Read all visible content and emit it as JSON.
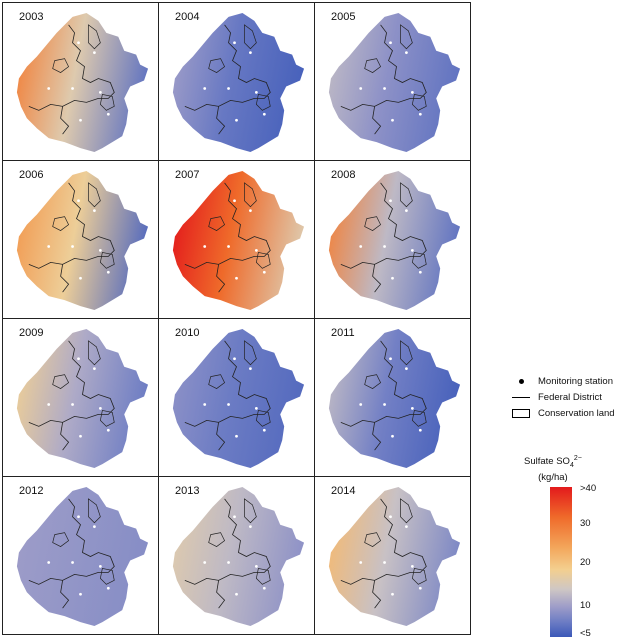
{
  "panels": [
    {
      "year": "2003",
      "level": 0.55,
      "west_level": 0.85,
      "east_level": 0.15
    },
    {
      "year": "2004",
      "level": 0.18,
      "west_level": 0.35,
      "east_level": 0.05
    },
    {
      "year": "2005",
      "level": 0.3,
      "west_level": 0.45,
      "east_level": 0.15
    },
    {
      "year": "2006",
      "level": 0.6,
      "west_level": 0.8,
      "east_level": 0.1
    },
    {
      "year": "2007",
      "level": 0.9,
      "west_level": 1.0,
      "east_level": 0.55
    },
    {
      "year": "2008",
      "level": 0.45,
      "west_level": 0.85,
      "east_level": 0.15
    },
    {
      "year": "2009",
      "level": 0.4,
      "west_level": 0.6,
      "east_level": 0.2
    },
    {
      "year": "2010",
      "level": 0.2,
      "west_level": 0.3,
      "east_level": 0.1
    },
    {
      "year": "2011",
      "level": 0.22,
      "west_level": 0.45,
      "east_level": 0.05
    },
    {
      "year": "2012",
      "level": 0.32,
      "west_level": 0.35,
      "east_level": 0.28
    },
    {
      "year": "2013",
      "level": 0.45,
      "west_level": 0.55,
      "east_level": 0.3
    },
    {
      "year": "2014",
      "level": 0.48,
      "west_level": 0.7,
      "east_level": 0.25
    }
  ],
  "legend": {
    "station": "Monitoring station",
    "district": "Federal District",
    "conservation": "Conservation land",
    "scale_title_line1": "Sulfate SO",
    "scale_sub": "4",
    "scale_sup": "2−",
    "scale_title_line2": "(kg/ha)",
    "ticks": [
      ">40",
      "30",
      "20",
      "10",
      "<5"
    ]
  },
  "colors": {
    "high": "#e31a1c",
    "mid_high": "#f3a55a",
    "mid": "#f3cf8f",
    "mid_low": "#9d9cc8",
    "low": "#3b58b8"
  }
}
